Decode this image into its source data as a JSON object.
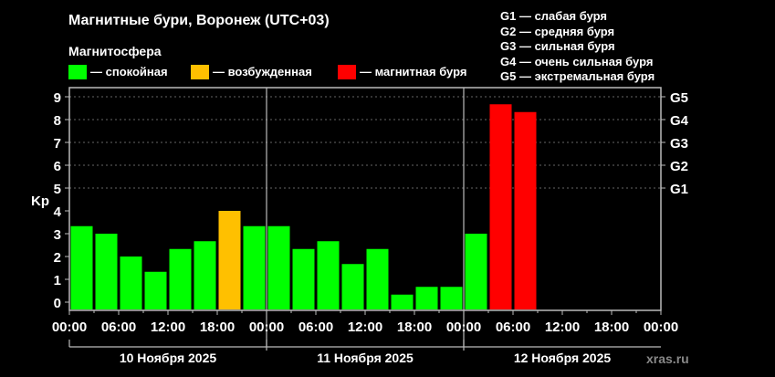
{
  "chart_data": {
    "type": "bar",
    "title": "Магнитные бури, Воронеж (UTC+03)",
    "legend_title": "Магнитосфера",
    "legend": [
      {
        "label": "— спокойная",
        "color": "#00ff00"
      },
      {
        "label": "— возбужденная",
        "color": "#ffc000"
      },
      {
        "label": "— магнитная буря",
        "color": "#ff0000"
      }
    ],
    "g_scale": [
      "G1 — слабая буря",
      "G2 — средняя буря",
      "G3 — сильная буря",
      "G4 — очень сильная буря",
      "G5 — экстремальная буря"
    ],
    "ylabel": "Kp",
    "ylim": [
      0,
      9
    ],
    "yticks": [
      "0",
      "1",
      "2",
      "3",
      "4",
      "5",
      "6",
      "7",
      "8",
      "9"
    ],
    "g_ticks": [
      {
        "label": "G1",
        "kp": 5
      },
      {
        "label": "G2",
        "kp": 6
      },
      {
        "label": "G3",
        "kp": 7
      },
      {
        "label": "G4",
        "kp": 8
      },
      {
        "label": "G5",
        "kp": 9
      }
    ],
    "xticks": [
      "00:00",
      "06:00",
      "12:00",
      "18:00",
      "00:00",
      "06:00",
      "12:00",
      "18:00",
      "00:00",
      "06:00",
      "12:00",
      "18:00",
      "00:00"
    ],
    "days": [
      "10 Ноября 2025",
      "11 Ноября 2025",
      "12 Ноября 2025"
    ],
    "interval_hours": 3,
    "values": [
      3.33,
      3,
      2,
      1.33,
      2.33,
      2.67,
      4,
      3.33,
      3.33,
      2.33,
      2.67,
      1.67,
      2.33,
      0.33,
      0.67,
      0.67,
      3,
      8.67,
      8.33
    ],
    "colors": [
      "#00ff00",
      "#00ff00",
      "#00ff00",
      "#00ff00",
      "#00ff00",
      "#00ff00",
      "#ffc000",
      "#00ff00",
      "#00ff00",
      "#00ff00",
      "#00ff00",
      "#00ff00",
      "#00ff00",
      "#00ff00",
      "#00ff00",
      "#00ff00",
      "#00ff00",
      "#ff0000",
      "#ff0000"
    ],
    "watermark": "xras.ru"
  }
}
